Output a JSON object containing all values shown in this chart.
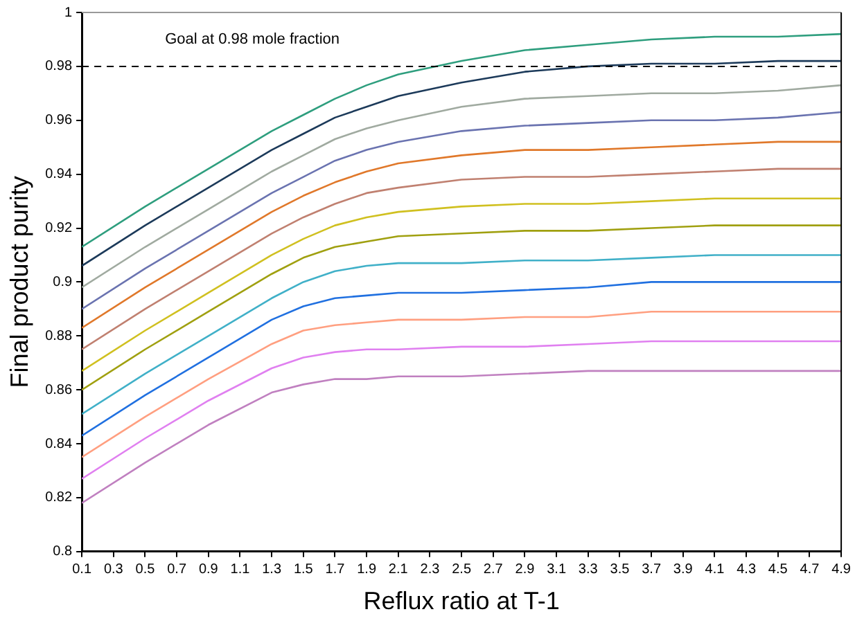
{
  "chart_data": {
    "type": "line",
    "xlabel": "Reflux ratio at T-1",
    "ylabel": "Final product purity",
    "x": [
      0.1,
      0.5,
      0.9,
      1.3,
      1.5,
      1.7,
      1.9,
      2.1,
      2.5,
      2.9,
      3.3,
      3.7,
      4.1,
      4.5,
      4.9
    ],
    "xlim": [
      0.1,
      4.9
    ],
    "xticks": [
      0.1,
      0.3,
      0.5,
      0.7,
      0.9,
      1.1,
      1.3,
      1.5,
      1.7,
      1.9,
      2.1,
      2.3,
      2.5,
      2.7,
      2.9,
      3.1,
      3.3,
      3.5,
      3.7,
      3.9,
      4.1,
      4.3,
      4.5,
      4.7,
      4.9
    ],
    "ylim": [
      0.8,
      1
    ],
    "yticks": [
      0.8,
      0.82,
      0.84,
      0.86,
      0.88,
      0.9,
      0.92,
      0.94,
      0.96,
      0.98,
      1
    ],
    "grid": false,
    "legend": false,
    "marker": "none",
    "line_style": "solid",
    "ref_lines": [
      {
        "axis": "y",
        "value": 0.98,
        "label": "Goal at 0.98 mole fraction",
        "color": "#000000",
        "line_style": "dashed"
      }
    ],
    "series": [
      {
        "color": "#c080c0",
        "values": [
          0.818,
          0.833,
          0.847,
          0.859,
          0.862,
          0.864,
          0.864,
          0.865,
          0.865,
          0.866,
          0.867,
          0.867,
          0.867,
          0.867,
          0.867
        ]
      },
      {
        "color": "#e080f0",
        "values": [
          0.827,
          0.842,
          0.856,
          0.868,
          0.872,
          0.874,
          0.875,
          0.875,
          0.876,
          0.876,
          0.877,
          0.878,
          0.878,
          0.878,
          0.878
        ]
      },
      {
        "color": "#ff9f80",
        "values": [
          0.835,
          0.85,
          0.864,
          0.877,
          0.882,
          0.884,
          0.885,
          0.886,
          0.886,
          0.887,
          0.887,
          0.889,
          0.889,
          0.889,
          0.889
        ]
      },
      {
        "color": "#2070e0",
        "values": [
          0.843,
          0.858,
          0.872,
          0.886,
          0.891,
          0.894,
          0.895,
          0.896,
          0.896,
          0.897,
          0.898,
          0.9,
          0.9,
          0.9,
          0.9
        ]
      },
      {
        "color": "#40b0c8",
        "values": [
          0.851,
          0.866,
          0.88,
          0.894,
          0.9,
          0.904,
          0.906,
          0.907,
          0.907,
          0.908,
          0.908,
          0.909,
          0.91,
          0.91,
          0.91
        ]
      },
      {
        "color": "#a0a010",
        "values": [
          0.86,
          0.875,
          0.889,
          0.903,
          0.909,
          0.913,
          0.915,
          0.917,
          0.918,
          0.919,
          0.919,
          0.92,
          0.921,
          0.921,
          0.921
        ]
      },
      {
        "color": "#d0c020",
        "values": [
          0.867,
          0.882,
          0.896,
          0.91,
          0.916,
          0.921,
          0.924,
          0.926,
          0.928,
          0.929,
          0.929,
          0.93,
          0.931,
          0.931,
          0.931
        ]
      },
      {
        "color": "#c08070",
        "values": [
          0.875,
          0.89,
          0.904,
          0.918,
          0.924,
          0.929,
          0.933,
          0.935,
          0.938,
          0.939,
          0.939,
          0.94,
          0.941,
          0.942,
          0.942
        ]
      },
      {
        "color": "#e0782a",
        "values": [
          0.883,
          0.898,
          0.912,
          0.926,
          0.932,
          0.937,
          0.941,
          0.944,
          0.947,
          0.949,
          0.949,
          0.95,
          0.951,
          0.952,
          0.952
        ]
      },
      {
        "color": "#6a73b0",
        "values": [
          0.89,
          0.905,
          0.919,
          0.933,
          0.939,
          0.945,
          0.949,
          0.952,
          0.956,
          0.958,
          0.959,
          0.96,
          0.96,
          0.961,
          0.963
        ]
      },
      {
        "color": "#a0aaa0",
        "values": [
          0.898,
          0.913,
          0.927,
          0.941,
          0.947,
          0.953,
          0.957,
          0.96,
          0.965,
          0.968,
          0.969,
          0.97,
          0.97,
          0.971,
          0.973
        ]
      },
      {
        "color": "#1c3a5a",
        "values": [
          0.906,
          0.921,
          0.935,
          0.949,
          0.955,
          0.961,
          0.965,
          0.969,
          0.974,
          0.978,
          0.98,
          0.981,
          0.981,
          0.982,
          0.982
        ]
      },
      {
        "color": "#2e9e7e",
        "values": [
          0.913,
          0.928,
          0.942,
          0.956,
          0.962,
          0.968,
          0.973,
          0.977,
          0.982,
          0.986,
          0.988,
          0.99,
          0.991,
          0.991,
          0.992
        ]
      }
    ]
  }
}
